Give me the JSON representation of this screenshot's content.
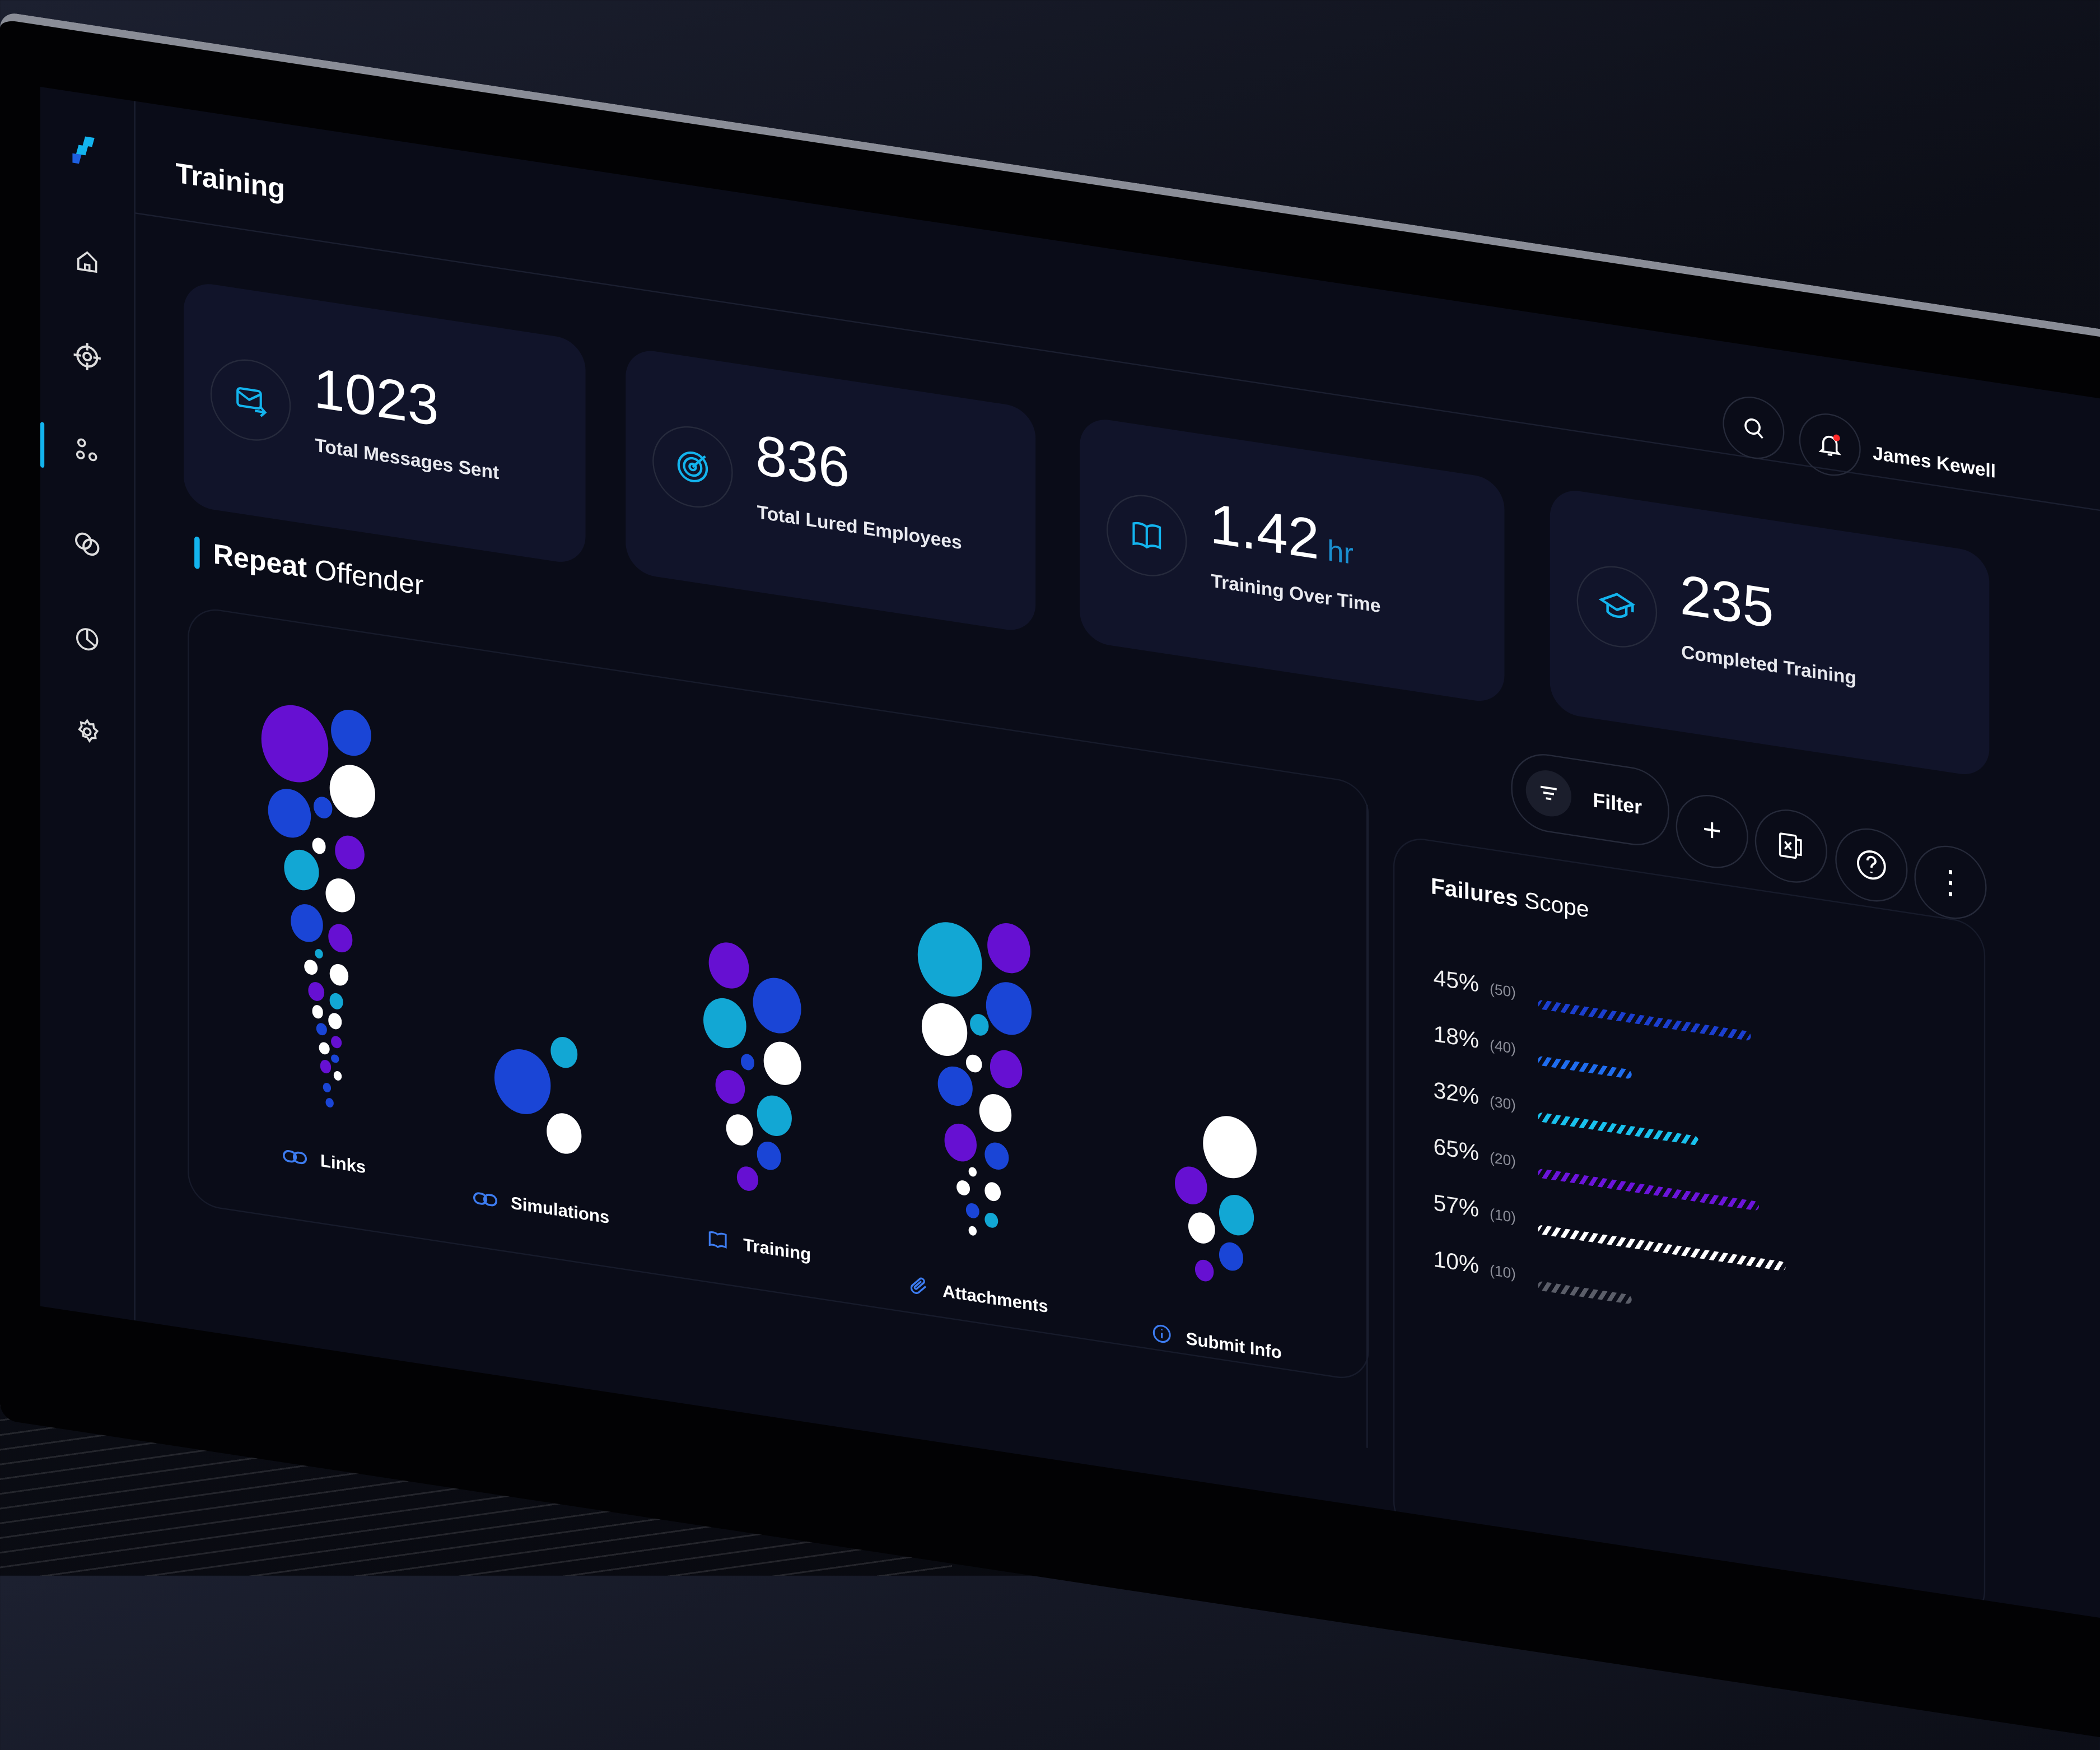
{
  "header": {
    "title": "Training",
    "user_name": "James Kewell",
    "search_icon": "search-icon",
    "bell_icon": "bell-icon",
    "notification_color": "#ff2a2a"
  },
  "sidebar": {
    "items": [
      {
        "name": "home",
        "icon": "home-icon"
      },
      {
        "name": "target",
        "icon": "crosshair-icon"
      },
      {
        "name": "training",
        "icon": "nodes-icon",
        "active": true
      },
      {
        "name": "campaigns",
        "icon": "link-rings-icon"
      },
      {
        "name": "reports",
        "icon": "pie-chart-icon"
      },
      {
        "name": "settings",
        "icon": "gear-icon"
      }
    ]
  },
  "stats": [
    {
      "value": "1023",
      "unit": "",
      "label": "Total Messages Sent",
      "icon": "mail-icon"
    },
    {
      "value": "836",
      "unit": "",
      "label": "Total Lured Employees",
      "icon": "radar-icon"
    },
    {
      "value": "1.42",
      "unit": "hr",
      "label": "Training Over Time",
      "icon": "book-icon"
    },
    {
      "value": "235",
      "unit": "",
      "label": "Completed Training",
      "icon": "graduation-cap-icon"
    }
  ],
  "repeat_offender": {
    "title_bold": "Repeat",
    "title_rest": "Offender",
    "categories": [
      {
        "label": "Links",
        "icon": "link-icon"
      },
      {
        "label": "Simulations",
        "icon": "link-icon"
      },
      {
        "label": "Training",
        "icon": "book-icon"
      },
      {
        "label": "Attachments",
        "icon": "paperclip-icon"
      },
      {
        "label": "Submit Info",
        "icon": "info-icon"
      }
    ]
  },
  "toolbar": {
    "filter_label": "Filter",
    "add_label": "+",
    "more_label": "⋮"
  },
  "failures": {
    "title_bold": "Failures",
    "title_rest": "Scope",
    "rows": [
      {
        "percent": "45%",
        "count": "(50)",
        "color": "#1b3fd0",
        "fill": 0.86
      },
      {
        "percent": "18%",
        "count": "(40)",
        "color": "#1f6df0",
        "fill": 0.38
      },
      {
        "percent": "32%",
        "count": "(30)",
        "color": "#19c2ee",
        "fill": 0.65
      },
      {
        "percent": "65%",
        "count": "(20)",
        "color": "#6c14dc",
        "fill": 0.89
      },
      {
        "percent": "57%",
        "count": "(10)",
        "color": "#ffffff",
        "fill": 1.0
      },
      {
        "percent": "10%",
        "count": "(10)",
        "color": "#5b5e69",
        "fill": 0.38
      }
    ]
  },
  "colors": {
    "accent": "#13b4ee",
    "purple": "#6610d2",
    "blue": "#1a45d6",
    "cyan": "#12a7d4",
    "white": "#ffffff",
    "background": "#0a0c18",
    "card": "#11142a"
  }
}
